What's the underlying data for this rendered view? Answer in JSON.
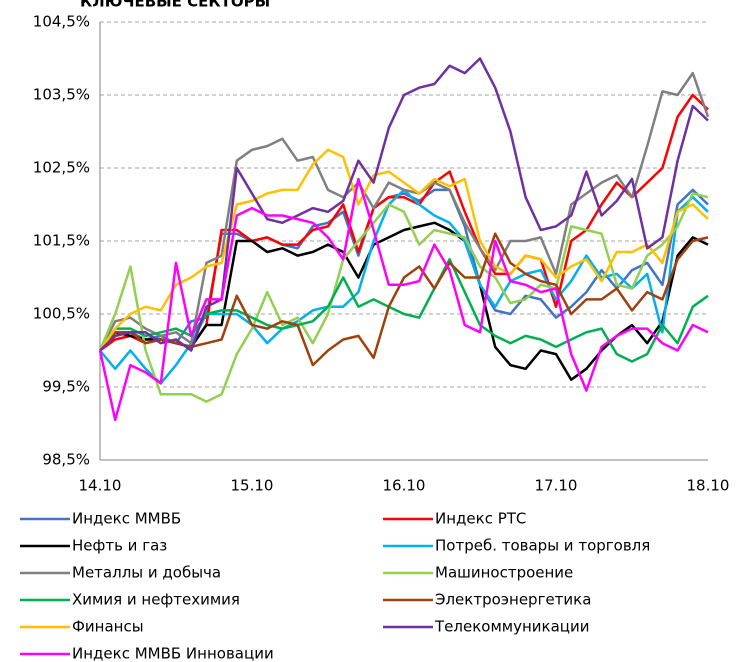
{
  "chart_data": {
    "type": "line",
    "title": "КЛЮЧЕВЫЕ СЕКТОРЫ",
    "categories": [
      "14.10",
      null,
      null,
      null,
      null,
      null,
      null,
      null,
      null,
      null,
      "15.10",
      null,
      null,
      null,
      null,
      null,
      null,
      null,
      null,
      null,
      "16.10",
      null,
      null,
      null,
      null,
      null,
      null,
      null,
      null,
      null,
      "17.10",
      null,
      null,
      null,
      null,
      null,
      null,
      null,
      null,
      null,
      "18.10"
    ],
    "ylim": [
      98.5,
      104.5
    ],
    "yticks": [
      {
        "value": 98.5,
        "label": "98,5%"
      },
      {
        "value": 99.5,
        "label": "99,5%"
      },
      {
        "value": 100.5,
        "label": "100,5%"
      },
      {
        "value": 101.5,
        "label": "101,5%"
      },
      {
        "value": 102.5,
        "label": "102,5%"
      },
      {
        "value": 103.5,
        "label": "103,5%"
      },
      {
        "value": 104.5,
        "label": "104,5%"
      }
    ],
    "grid": true,
    "series": [
      {
        "name": "Индекс ММВБ",
        "color": "#4472c4",
        "values": [
          100,
          100.2,
          100.25,
          100.15,
          100.2,
          100.1,
          100.4,
          100.45,
          101.6,
          101.6,
          101.5,
          101.55,
          101.45,
          101.4,
          101.7,
          101.75,
          101.9,
          101.3,
          101.95,
          102.1,
          102.15,
          102.05,
          102.2,
          102.2,
          101.7,
          100.9,
          100.55,
          100.5,
          100.75,
          100.7,
          100.45,
          100.6,
          100.8,
          101.1,
          100.85,
          101.1,
          101.2,
          100.9,
          102.0,
          102.2,
          102.0
        ]
      },
      {
        "name": "Индекс РТС",
        "color": "#ff0000",
        "values": [
          100,
          100.15,
          100.2,
          100.1,
          100.15,
          100.1,
          100.05,
          100.35,
          101.65,
          101.65,
          101.5,
          101.55,
          101.45,
          101.45,
          101.65,
          101.7,
          102.0,
          101.35,
          101.95,
          102.1,
          102.1,
          102.0,
          102.3,
          102.45,
          101.9,
          101.4,
          101.05,
          101.05,
          101.3,
          101.25,
          100.6,
          101.5,
          101.65,
          102.0,
          102.3,
          102.1,
          102.3,
          102.5,
          103.2,
          103.5,
          103.3
        ]
      },
      {
        "name": "Нефть и газ",
        "color": "#000000",
        "values": [
          100,
          100.25,
          100.2,
          100.15,
          100.15,
          100.1,
          100.05,
          100.35,
          100.35,
          101.5,
          101.5,
          101.35,
          101.4,
          101.3,
          101.35,
          101.45,
          101.35,
          101.0,
          101.45,
          101.55,
          101.65,
          101.7,
          101.75,
          101.65,
          101.5,
          100.9,
          100.05,
          99.8,
          99.75,
          100.0,
          99.95,
          99.6,
          99.75,
          100.0,
          100.2,
          100.35,
          100.1,
          100.4,
          101.3,
          101.55,
          101.45
        ]
      },
      {
        "name": "Потреб. товары и торговля",
        "color": "#00b0f0",
        "values": [
          100,
          99.75,
          100.0,
          99.75,
          99.55,
          99.8,
          100.1,
          100.5,
          100.5,
          100.5,
          100.35,
          100.1,
          100.3,
          100.4,
          100.55,
          100.6,
          100.6,
          100.8,
          101.5,
          102.0,
          102.2,
          102.0,
          101.85,
          101.75,
          101.5,
          100.9,
          100.6,
          100.95,
          101.05,
          101.1,
          100.7,
          100.95,
          101.3,
          101.0,
          101.05,
          100.85,
          101.05,
          100.25,
          101.9,
          102.1,
          101.9
        ]
      },
      {
        "name": "Металлы и добыча",
        "color": "#808080",
        "values": [
          100,
          100.4,
          100.45,
          100.3,
          100.2,
          100.25,
          100.1,
          101.2,
          101.3,
          102.6,
          102.75,
          102.8,
          102.9,
          102.6,
          102.65,
          102.2,
          102.1,
          102.3,
          101.95,
          102.3,
          102.2,
          102.15,
          102.3,
          102.2,
          101.75,
          101.4,
          101.1,
          101.5,
          101.5,
          101.55,
          101.05,
          102.0,
          102.15,
          102.3,
          102.4,
          102.1,
          102.8,
          103.55,
          103.5,
          103.8,
          103.2
        ]
      },
      {
        "name": "Машиностроение",
        "color": "#92d050",
        "values": [
          100,
          100.5,
          101.15,
          100.0,
          99.4,
          99.4,
          99.4,
          99.3,
          99.4,
          99.95,
          100.3,
          100.8,
          100.35,
          100.45,
          100.1,
          100.5,
          101.25,
          101.5,
          101.75,
          102.0,
          101.9,
          101.45,
          101.65,
          101.6,
          101.55,
          101.15,
          101.0,
          100.65,
          100.7,
          100.9,
          100.85,
          101.7,
          101.65,
          101.6,
          100.9,
          100.85,
          101.3,
          101.45,
          101.7,
          102.15,
          102.1
        ]
      },
      {
        "name": "Химия и нефтехимия",
        "color": "#00b050",
        "values": [
          100,
          100.3,
          100.3,
          100.2,
          100.25,
          100.3,
          100.2,
          100.5,
          100.55,
          100.55,
          100.45,
          100.35,
          100.3,
          100.35,
          100.4,
          100.6,
          101.0,
          100.6,
          100.7,
          100.6,
          100.5,
          100.45,
          100.85,
          101.25,
          100.8,
          100.35,
          100.2,
          100.1,
          100.2,
          100.15,
          100.05,
          100.15,
          100.25,
          100.3,
          99.95,
          99.85,
          99.95,
          100.35,
          100.1,
          100.6,
          100.75
        ]
      },
      {
        "name": "Электроэнергетика",
        "color": "#a0410d",
        "values": [
          100,
          100.25,
          100.25,
          100.1,
          100.15,
          100.1,
          100.05,
          100.1,
          100.15,
          100.75,
          100.35,
          100.3,
          100.4,
          100.35,
          99.8,
          100.0,
          100.15,
          100.2,
          99.9,
          100.6,
          101.0,
          101.15,
          100.85,
          101.2,
          101.0,
          101.0,
          101.6,
          101.2,
          101.05,
          100.95,
          100.9,
          100.5,
          100.7,
          100.7,
          100.85,
          100.55,
          100.8,
          100.7,
          101.25,
          101.5,
          101.55
        ]
      },
      {
        "name": "Финансы",
        "color": "#ffc000",
        "values": [
          100,
          100.3,
          100.5,
          100.6,
          100.55,
          100.9,
          101.0,
          101.15,
          101.2,
          102.0,
          102.05,
          102.15,
          102.2,
          102.2,
          102.55,
          102.75,
          102.65,
          102.0,
          102.4,
          102.45,
          102.3,
          102.15,
          102.35,
          102.25,
          102.35,
          101.5,
          101.15,
          101.05,
          101.3,
          101.25,
          101.0,
          101.15,
          101.25,
          100.95,
          101.35,
          101.35,
          101.45,
          101.2,
          101.9,
          102.0,
          101.8
        ]
      },
      {
        "name": "Телекоммуникации",
        "color": "#7030a0",
        "values": [
          100,
          100.2,
          100.25,
          100.25,
          100.1,
          100.15,
          100.0,
          100.6,
          100.7,
          102.5,
          102.15,
          101.8,
          101.75,
          101.85,
          101.95,
          101.9,
          102.05,
          102.6,
          102.3,
          103.05,
          103.5,
          103.6,
          103.65,
          103.9,
          103.8,
          104.0,
          103.6,
          103.0,
          102.1,
          101.65,
          101.7,
          101.85,
          102.45,
          101.85,
          102.05,
          102.35,
          101.4,
          101.55,
          102.6,
          103.35,
          103.15
        ]
      },
      {
        "name": "Индекс ММВБ Инновации",
        "color": "#ff00ff",
        "values": [
          100,
          99.05,
          99.8,
          99.7,
          99.55,
          101.2,
          100.2,
          100.7,
          100.7,
          101.85,
          101.95,
          101.85,
          101.85,
          101.8,
          101.75,
          101.55,
          101.25,
          102.35,
          101.65,
          100.9,
          100.9,
          100.95,
          101.45,
          101.1,
          100.35,
          100.25,
          101.5,
          100.95,
          100.9,
          100.8,
          100.85,
          99.95,
          99.45,
          100.05,
          100.2,
          100.3,
          100.3,
          100.1,
          100.0,
          100.35,
          100.25
        ]
      }
    ]
  }
}
